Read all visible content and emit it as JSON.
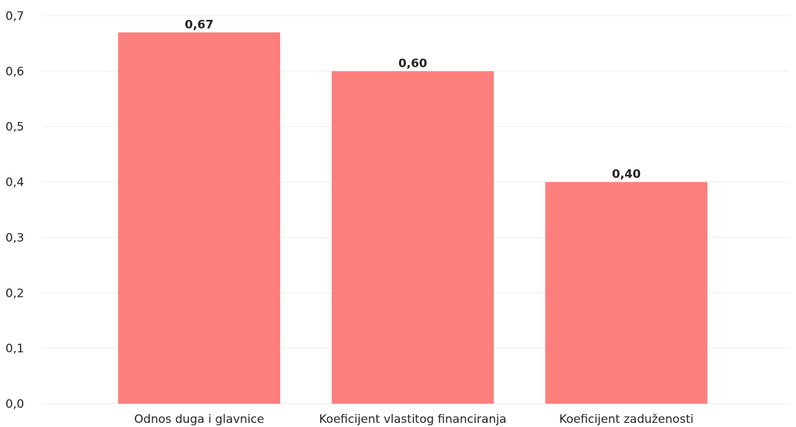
{
  "chart_data": {
    "type": "bar",
    "categories": [
      "Odnos duga i glavnice",
      "Koeficijent vlastitog financiranja",
      "Koeficijent zaduženosti"
    ],
    "values": [
      0.67,
      0.6,
      0.4
    ],
    "data_labels": [
      "0,67",
      "0,60",
      "0,40"
    ],
    "y_ticks": [
      0.0,
      0.1,
      0.2,
      0.3,
      0.4,
      0.5,
      0.6,
      0.7
    ],
    "y_tick_labels": [
      "0,0",
      "0,1",
      "0,2",
      "0,3",
      "0,4",
      "0,5",
      "0,6",
      "0,7"
    ],
    "ylim": [
      0,
      0.7
    ],
    "grid": true,
    "legend": "none",
    "colors": {
      "bar": "#fd7f7d",
      "gridline": "#ebebeb",
      "text": "#252423"
    }
  }
}
